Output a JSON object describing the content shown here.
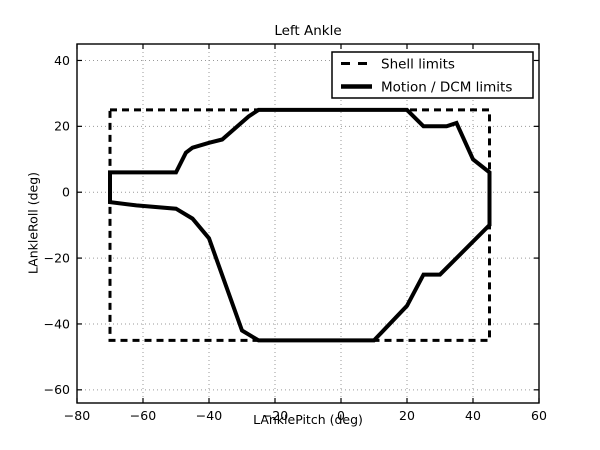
{
  "title": "Left Ankle",
  "axes": {
    "xlabel": "LAnklePitch (deg)",
    "ylabel": "LAnkleRoll (deg)"
  },
  "legend": {
    "items": [
      {
        "label": "Shell limits",
        "style": "dashed"
      },
      {
        "label": "Motion / DCM limits",
        "style": "solid"
      }
    ]
  },
  "colors": {
    "line": "#000000",
    "grid": "#9a9a9a",
    "background": "#ffffff"
  },
  "chart_data": {
    "type": "line",
    "title": "Left Ankle",
    "xlabel": "LAnklePitch (deg)",
    "ylabel": "LAnkleRoll (deg)",
    "xlim": [
      -80,
      60
    ],
    "ylim": [
      -64,
      45
    ],
    "xticks": [
      -80,
      -60,
      -40,
      -20,
      0,
      20,
      40,
      60
    ],
    "yticks": [
      -60,
      -40,
      -20,
      0,
      20,
      40
    ],
    "grid": true,
    "legend_position": "upper right",
    "series": [
      {
        "name": "Shell limits",
        "style": "dashed",
        "closed": true,
        "points": [
          [
            -70,
            25
          ],
          [
            45,
            25
          ],
          [
            45,
            -45
          ],
          [
            -70,
            -45
          ]
        ]
      },
      {
        "name": "Motion / DCM limits",
        "style": "solid",
        "closed": true,
        "points": [
          [
            -70,
            6
          ],
          [
            -50,
            6
          ],
          [
            -47,
            12
          ],
          [
            -45,
            13.5
          ],
          [
            -40,
            15
          ],
          [
            -36,
            16
          ],
          [
            -28,
            23
          ],
          [
            -25,
            25
          ],
          [
            20,
            25
          ],
          [
            25,
            20
          ],
          [
            32,
            20
          ],
          [
            35,
            21
          ],
          [
            40,
            10
          ],
          [
            45,
            6
          ],
          [
            45,
            -10
          ],
          [
            30,
            -25
          ],
          [
            25,
            -25
          ],
          [
            20,
            -34.5
          ],
          [
            10,
            -45
          ],
          [
            -25,
            -45
          ],
          [
            -30,
            -42
          ],
          [
            -40,
            -14
          ],
          [
            -45,
            -8
          ],
          [
            -50,
            -5
          ],
          [
            -62,
            -4
          ],
          [
            -70,
            -3
          ]
        ]
      }
    ]
  }
}
